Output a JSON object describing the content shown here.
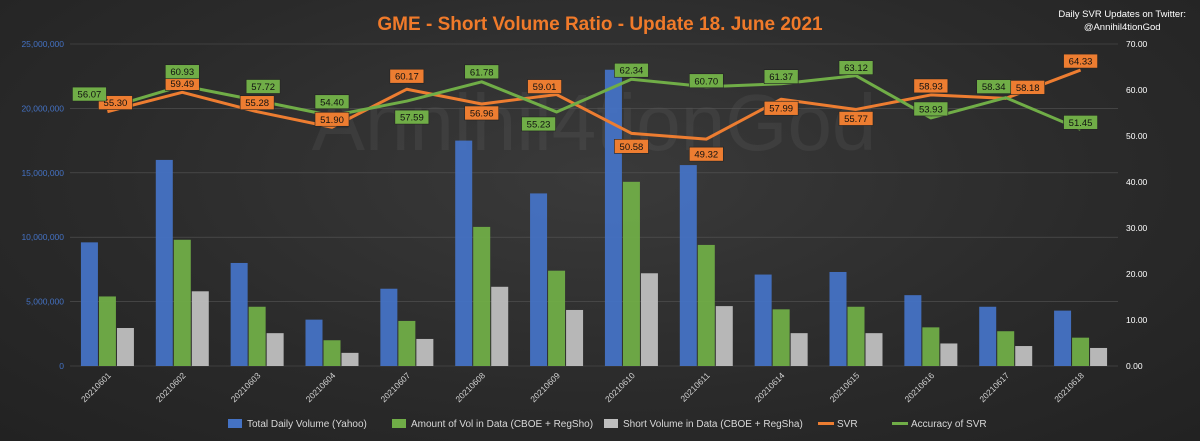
{
  "chart_data": {
    "type": "bar",
    "title": "GME - Short Volume Ratio - Update 18. June 2021",
    "note": [
      "Daily SVR Updates on Twitter:",
      "@Annihil4tionGod"
    ],
    "watermark": "Annihil4tionGod",
    "categories": [
      "20210601",
      "20210602",
      "20210603",
      "20210604",
      "20210607",
      "20210608",
      "20210609",
      "20210610",
      "20210611",
      "20210614",
      "20210615",
      "20210616",
      "20210617",
      "20210618"
    ],
    "y_left": {
      "min": 0,
      "max": 25000000,
      "ticks": [
        "0",
        "5,000,000",
        "10,000,000",
        "15,000,000",
        "20,000,000",
        "25,000,000"
      ],
      "tick_values": [
        0,
        5000000,
        10000000,
        15000000,
        20000000,
        25000000
      ],
      "color": "#4472c4"
    },
    "y_right": {
      "min": 0,
      "max": 70,
      "ticks": [
        "0.00",
        "10.00",
        "20.00",
        "30.00",
        "40.00",
        "50.00",
        "60.00",
        "70.00"
      ],
      "tick_values": [
        0,
        10,
        20,
        30,
        40,
        50,
        60,
        70
      ],
      "color": "#ffffff"
    },
    "bar_series": [
      {
        "name": "Total Daily Volume (Yahoo)",
        "color": "#4472c4",
        "values": [
          9600000,
          16000000,
          8000000,
          3600000,
          6000000,
          17500000,
          13400000,
          23000000,
          15600000,
          7100000,
          7300000,
          5500000,
          4600000,
          4300000
        ]
      },
      {
        "name": "Amount of Vol in Data (CBOE + RegSho)",
        "color": "#70ad47",
        "values": [
          5400000,
          9800000,
          4600000,
          2000000,
          3500000,
          10800000,
          7400000,
          14300000,
          9400000,
          4400000,
          4600000,
          3000000,
          2700000,
          2200000
        ]
      },
      {
        "name": "Short Volume in Data (CBOE + RegSha)",
        "color": "#bfbfbf",
        "values": [
          2950000,
          5800000,
          2550000,
          1020000,
          2100000,
          6150000,
          4350000,
          7200000,
          4650000,
          2550000,
          2550000,
          1750000,
          1550000,
          1400000
        ]
      }
    ],
    "line_series": [
      {
        "name": "SVR",
        "color": "#ed7d31",
        "label_bg": "#ed7d31",
        "values": [
          55.3,
          59.49,
          55.28,
          51.9,
          60.17,
          56.96,
          59.01,
          50.58,
          49.32,
          57.99,
          55.77,
          58.93,
          58.18,
          64.33
        ]
      },
      {
        "name": "Accuracy of SVR",
        "color": "#70ad47",
        "label_bg": "#70ad47",
        "values": [
          56.07,
          60.93,
          57.72,
          54.4,
          57.59,
          61.78,
          55.23,
          62.34,
          60.7,
          61.37,
          63.12,
          53.93,
          58.34,
          51.45
        ]
      }
    ],
    "legend": [
      "Total Daily Volume (Yahoo)",
      "Amount of Vol in Data (CBOE + RegSho)",
      "Short Volume in Data (CBOE + RegSha)",
      "SVR",
      "Accuracy of SVR"
    ],
    "legend_position": "bottom",
    "grid": true
  }
}
